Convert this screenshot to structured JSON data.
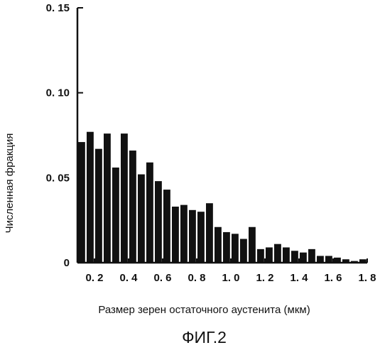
{
  "chart_data": {
    "type": "bar",
    "xlabel": "Размер зерен остаточного аустенита (мкм)",
    "ylabel": "Численная фракция",
    "ylim": [
      0,
      0.15
    ],
    "xlim": [
      0.1,
      1.8
    ],
    "y_ticks": [
      "0",
      "0. 05",
      "0. 10",
      "0. 15"
    ],
    "x_ticks": [
      "0. 2",
      "0. 4",
      "0. 6",
      "0. 8",
      "1. 0",
      "1. 2",
      "1. 4",
      "1. 6",
      "1. 8"
    ],
    "grid": false,
    "bar_color": "#111111",
    "x": [
      0.1,
      0.15,
      0.2,
      0.25,
      0.3,
      0.35,
      0.4,
      0.45,
      0.5,
      0.55,
      0.6,
      0.65,
      0.7,
      0.75,
      0.8,
      0.85,
      0.9,
      0.95,
      1.0,
      1.05,
      1.1,
      1.15,
      1.2,
      1.25,
      1.3,
      1.35,
      1.4,
      1.45,
      1.5,
      1.55,
      1.6,
      1.65,
      1.7,
      1.75
    ],
    "values": [
      0.071,
      0.077,
      0.067,
      0.076,
      0.056,
      0.076,
      0.066,
      0.052,
      0.059,
      0.048,
      0.043,
      0.033,
      0.034,
      0.031,
      0.03,
      0.035,
      0.021,
      0.018,
      0.017,
      0.014,
      0.021,
      0.008,
      0.009,
      0.011,
      0.009,
      0.007,
      0.006,
      0.008,
      0.004,
      0.004,
      0.003,
      0.002,
      0.001,
      0.002
    ]
  },
  "caption": "ФИГ.2"
}
